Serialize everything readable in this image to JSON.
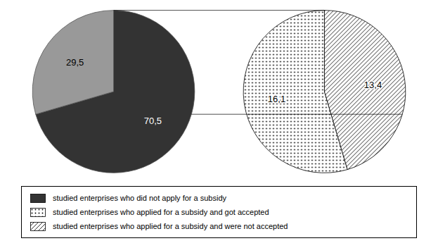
{
  "chart_data": [
    {
      "type": "pie",
      "categories": [
        "studied enterprises who did not apply for a subsidy",
        null
      ],
      "values": [
        70.5,
        29.5
      ],
      "value_labels": [
        "70,5",
        "29,5"
      ],
      "colors": [
        "#333333",
        "#999999"
      ],
      "data_labels": true,
      "legend": "bottom"
    },
    {
      "type": "pie",
      "categories": [
        "studied enterprises who applied for a subsidy and got accepted",
        "studied enterprises who applied for a subsidy and were not accepted"
      ],
      "values": [
        16.1,
        13.4
      ],
      "value_labels": [
        "16,1",
        "13,4"
      ],
      "colors": [
        "white",
        "white"
      ],
      "data_labels": true,
      "legend": "bottom"
    }
  ]
}
